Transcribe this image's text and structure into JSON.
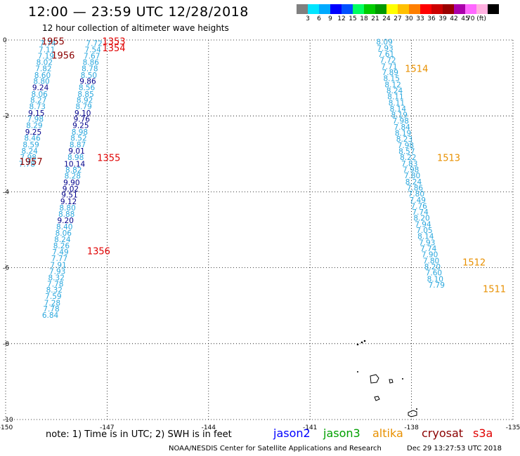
{
  "header": {
    "title": "12:00 — 23:59 UTC 12/28/2018",
    "subtitle": "12 hour collection of altimeter wave heights"
  },
  "colorbar": {
    "colors": [
      "#808080",
      "#00e5ff",
      "#00aaff",
      "#0000ff",
      "#0050ff",
      "#00ff60",
      "#00cc00",
      "#009900",
      "#ffff00",
      "#ffc000",
      "#ff7f00",
      "#ff0000",
      "#cc0000",
      "#990000",
      "#aa00aa",
      "#ff66ff",
      "#ffb0e0",
      "#000000"
    ],
    "labels": [
      "3",
      "6",
      "9",
      "12",
      "15",
      "18",
      "21",
      "24",
      "27",
      "30",
      "33",
      "36",
      "39",
      "42",
      "45",
      "70 (ft)"
    ]
  },
  "map": {
    "lon_ticks": [
      "-150",
      "-147",
      "-144",
      "-141",
      "-138",
      "-135"
    ],
    "lat_ticks": [
      "0",
      "-2",
      "-4",
      "-6",
      "-8",
      "-10"
    ],
    "lon_range": [
      -150,
      -135
    ],
    "lat_range": [
      0,
      -10
    ]
  },
  "colors": {
    "light_blue": "#2aa7dd",
    "navy": "#00008b",
    "cryosat": "#8b0000",
    "s3a_time": "#e00000",
    "altika": "#e89000",
    "jason2": "#0000ff",
    "jason3": "#00a000"
  },
  "tracks": [
    {
      "name": "s3a-track-A",
      "points": [
        {
          "lon": -148.75,
          "lat": -0.08,
          "v": "7.74"
        },
        {
          "lon": -148.78,
          "lat": -0.25,
          "v": "7.11"
        },
        {
          "lon": -148.81,
          "lat": -0.42,
          "v": "7.19"
        },
        {
          "lon": -148.85,
          "lat": -0.58,
          "v": "8.02"
        },
        {
          "lon": -148.88,
          "lat": -0.75,
          "v": "7.82"
        },
        {
          "lon": -148.91,
          "lat": -0.92,
          "v": "8.60"
        },
        {
          "lon": -148.94,
          "lat": -1.08,
          "v": "8.80"
        },
        {
          "lon": -148.97,
          "lat": -1.25,
          "v": "9.24",
          "c": "navy"
        },
        {
          "lon": -149.0,
          "lat": -1.42,
          "v": "8.06"
        },
        {
          "lon": -149.03,
          "lat": -1.58,
          "v": "8.27"
        },
        {
          "lon": -149.06,
          "lat": -1.75,
          "v": "8.73"
        },
        {
          "lon": -149.09,
          "lat": -1.92,
          "v": "9.15",
          "c": "navy"
        },
        {
          "lon": -149.12,
          "lat": -2.08,
          "v": "7.98"
        },
        {
          "lon": -149.15,
          "lat": -2.25,
          "v": "8.29"
        },
        {
          "lon": -149.18,
          "lat": -2.42,
          "v": "9.25",
          "c": "navy"
        },
        {
          "lon": -149.21,
          "lat": -2.58,
          "v": "8.46"
        },
        {
          "lon": -149.25,
          "lat": -2.75,
          "v": "8.59"
        },
        {
          "lon": -149.29,
          "lat": -2.92,
          "v": "8.24"
        },
        {
          "lon": -149.33,
          "lat": -3.09,
          "v": "7.98"
        },
        {
          "lon": -149.37,
          "lat": -3.26,
          "v": "7.78"
        }
      ]
    },
    {
      "name": "s3a-track-B",
      "points": [
        {
          "lon": -147.38,
          "lat": -0.08,
          "v": "7.72"
        },
        {
          "lon": -147.42,
          "lat": -0.25,
          "v": "7.54"
        },
        {
          "lon": -147.45,
          "lat": -0.42,
          "v": "7.67"
        },
        {
          "lon": -147.48,
          "lat": -0.58,
          "v": "8.86"
        },
        {
          "lon": -147.51,
          "lat": -0.75,
          "v": "8.78"
        },
        {
          "lon": -147.54,
          "lat": -0.92,
          "v": "8.50"
        },
        {
          "lon": -147.57,
          "lat": -1.08,
          "v": "9.86",
          "c": "navy"
        },
        {
          "lon": -147.6,
          "lat": -1.25,
          "v": "8.56"
        },
        {
          "lon": -147.63,
          "lat": -1.42,
          "v": "8.85"
        },
        {
          "lon": -147.66,
          "lat": -1.58,
          "v": "8.92"
        },
        {
          "lon": -147.69,
          "lat": -1.75,
          "v": "8.79"
        },
        {
          "lon": -147.72,
          "lat": -1.92,
          "v": "9.10",
          "c": "navy"
        },
        {
          "lon": -147.75,
          "lat": -2.08,
          "v": "9.76",
          "c": "navy"
        },
        {
          "lon": -147.78,
          "lat": -2.25,
          "v": "9.25",
          "c": "navy"
        },
        {
          "lon": -147.81,
          "lat": -2.42,
          "v": "8.98"
        },
        {
          "lon": -147.84,
          "lat": -2.58,
          "v": "8.52"
        },
        {
          "lon": -147.87,
          "lat": -2.75,
          "v": "8.87"
        },
        {
          "lon": -147.9,
          "lat": -2.92,
          "v": "9.01",
          "c": "navy"
        },
        {
          "lon": -147.93,
          "lat": -3.09,
          "v": "8.98"
        },
        {
          "lon": -147.96,
          "lat": -3.26,
          "v": "10.14",
          "c": "navy"
        },
        {
          "lon": -147.99,
          "lat": -3.42,
          "v": "8.82"
        },
        {
          "lon": -148.02,
          "lat": -3.58,
          "v": "8.28"
        },
        {
          "lon": -148.05,
          "lat": -3.75,
          "v": "9.90",
          "c": "navy"
        },
        {
          "lon": -148.08,
          "lat": -3.92,
          "v": "9.02",
          "c": "navy"
        },
        {
          "lon": -148.11,
          "lat": -4.08,
          "v": "9.51",
          "c": "navy"
        },
        {
          "lon": -148.14,
          "lat": -4.25,
          "v": "9.12",
          "c": "navy"
        },
        {
          "lon": -148.17,
          "lat": -4.42,
          "v": "8.80"
        },
        {
          "lon": -148.2,
          "lat": -4.58,
          "v": "8.88"
        },
        {
          "lon": -148.23,
          "lat": -4.75,
          "v": "9.20",
          "c": "navy"
        },
        {
          "lon": -148.26,
          "lat": -4.92,
          "v": "8.40"
        },
        {
          "lon": -148.29,
          "lat": -5.08,
          "v": "8.06"
        },
        {
          "lon": -148.32,
          "lat": -5.25,
          "v": "8.24"
        },
        {
          "lon": -148.35,
          "lat": -5.42,
          "v": "8.26"
        },
        {
          "lon": -148.38,
          "lat": -5.58,
          "v": "7.49"
        },
        {
          "lon": -148.41,
          "lat": -5.75,
          "v": "7.77"
        },
        {
          "lon": -148.44,
          "lat": -5.92,
          "v": "7.91"
        },
        {
          "lon": -148.47,
          "lat": -6.09,
          "v": "7.93"
        },
        {
          "lon": -148.5,
          "lat": -6.26,
          "v": "8.32"
        },
        {
          "lon": -148.53,
          "lat": -6.42,
          "v": "7.78"
        },
        {
          "lon": -148.56,
          "lat": -6.58,
          "v": "8.32"
        },
        {
          "lon": -148.59,
          "lat": -6.75,
          "v": "7.59"
        },
        {
          "lon": -148.62,
          "lat": -6.92,
          "v": "7.28"
        },
        {
          "lon": -148.65,
          "lat": -7.08,
          "v": "7.78"
        },
        {
          "lon": -148.68,
          "lat": -7.25,
          "v": "6.84"
        }
      ]
    },
    {
      "name": "s3a-track-C",
      "points": [
        {
          "lon": -138.8,
          "lat": -0.05,
          "v": "8.09"
        },
        {
          "lon": -138.78,
          "lat": -0.21,
          "v": "7.93"
        },
        {
          "lon": -138.75,
          "lat": -0.37,
          "v": "7.61"
        },
        {
          "lon": -138.7,
          "lat": -0.53,
          "v": "7.72"
        },
        {
          "lon": -138.66,
          "lat": -0.69,
          "v": "7.71"
        },
        {
          "lon": -138.63,
          "lat": -0.85,
          "v": "7.89"
        },
        {
          "lon": -138.59,
          "lat": -1.01,
          "v": "8.15"
        },
        {
          "lon": -138.55,
          "lat": -1.17,
          "v": "8.12"
        },
        {
          "lon": -138.5,
          "lat": -1.33,
          "v": "8.24"
        },
        {
          "lon": -138.47,
          "lat": -1.49,
          "v": "8.11"
        },
        {
          "lon": -138.44,
          "lat": -1.65,
          "v": "8.11"
        },
        {
          "lon": -138.4,
          "lat": -1.81,
          "v": "8.14"
        },
        {
          "lon": -138.36,
          "lat": -1.97,
          "v": "8.19"
        },
        {
          "lon": -138.32,
          "lat": -2.13,
          "v": "7.98"
        },
        {
          "lon": -138.28,
          "lat": -2.29,
          "v": "7.84"
        },
        {
          "lon": -138.25,
          "lat": -2.45,
          "v": "8.19"
        },
        {
          "lon": -138.21,
          "lat": -2.61,
          "v": "8.23"
        },
        {
          "lon": -138.17,
          "lat": -2.77,
          "v": "7.98"
        },
        {
          "lon": -138.14,
          "lat": -2.93,
          "v": "8.57"
        },
        {
          "lon": -138.1,
          "lat": -3.09,
          "v": "8.22"
        },
        {
          "lon": -138.06,
          "lat": -3.25,
          "v": "7.83"
        },
        {
          "lon": -138.02,
          "lat": -3.41,
          "v": "7.98"
        },
        {
          "lon": -137.98,
          "lat": -3.57,
          "v": "7.80"
        },
        {
          "lon": -137.94,
          "lat": -3.73,
          "v": "8.24"
        },
        {
          "lon": -137.9,
          "lat": -3.89,
          "v": "7.86"
        },
        {
          "lon": -137.86,
          "lat": -4.05,
          "v": "7.80"
        },
        {
          "lon": -137.82,
          "lat": -4.21,
          "v": "7.49"
        },
        {
          "lon": -137.78,
          "lat": -4.37,
          "v": "7.76"
        },
        {
          "lon": -137.74,
          "lat": -4.53,
          "v": "7.74"
        },
        {
          "lon": -137.7,
          "lat": -4.69,
          "v": "8.20"
        },
        {
          "lon": -137.66,
          "lat": -4.85,
          "v": "7.94"
        },
        {
          "lon": -137.62,
          "lat": -5.01,
          "v": "7.05"
        },
        {
          "lon": -137.58,
          "lat": -5.17,
          "v": "8.14"
        },
        {
          "lon": -137.54,
          "lat": -5.33,
          "v": "7.93"
        },
        {
          "lon": -137.5,
          "lat": -5.49,
          "v": "7.74"
        },
        {
          "lon": -137.46,
          "lat": -5.65,
          "v": "7.90"
        },
        {
          "lon": -137.42,
          "lat": -5.81,
          "v": "7.80"
        },
        {
          "lon": -137.38,
          "lat": -5.97,
          "v": "8.20"
        },
        {
          "lon": -137.34,
          "lat": -6.13,
          "v": "7.60"
        },
        {
          "lon": -137.3,
          "lat": -6.29,
          "v": "8.10"
        },
        {
          "lon": -137.26,
          "lat": -6.45,
          "v": "7.79"
        }
      ]
    }
  ],
  "time_stamps": [
    {
      "text": "1955",
      "lon": -148.6,
      "lat": -0.03,
      "c": "cryosat"
    },
    {
      "text": "1956",
      "lon": -148.3,
      "lat": -0.4,
      "c": "cryosat"
    },
    {
      "text": "1957",
      "lon": -149.25,
      "lat": -3.2,
      "c": "cryosat"
    },
    {
      "text": "1353",
      "lon": -146.8,
      "lat": -0.03,
      "c": "s3a_time"
    },
    {
      "text": "1354",
      "lon": -146.8,
      "lat": -0.2,
      "c": "s3a_time"
    },
    {
      "text": "1355",
      "lon": -146.95,
      "lat": -3.1,
      "c": "s3a_time"
    },
    {
      "text": "1356",
      "lon": -147.25,
      "lat": -5.55,
      "c": "s3a_time"
    },
    {
      "text": "1514",
      "lon": -137.85,
      "lat": -0.75,
      "c": "altika"
    },
    {
      "text": "1513",
      "lon": -136.9,
      "lat": -3.1,
      "c": "altika"
    },
    {
      "text": "1512",
      "lon": -136.15,
      "lat": -5.85,
      "c": "altika"
    },
    {
      "text": "1511",
      "lon": -135.55,
      "lat": -6.55,
      "c": "altika"
    }
  ],
  "footer": {
    "note": "note:  1) Time is in UTC;  2) SWH is in feet",
    "legend": [
      {
        "label": "jason2",
        "c": "jason2"
      },
      {
        "label": "jason3",
        "c": "jason3"
      },
      {
        "label": "altika",
        "c": "altika"
      },
      {
        "label": "cryosat",
        "c": "cryosat"
      },
      {
        "label": "s3a",
        "c": "s3a_time"
      }
    ],
    "credit": "NOAA/NESDIS Center for Satellite Applications and Research",
    "date_stamp": "Dec 29 13:27:53 UTC 2018"
  }
}
